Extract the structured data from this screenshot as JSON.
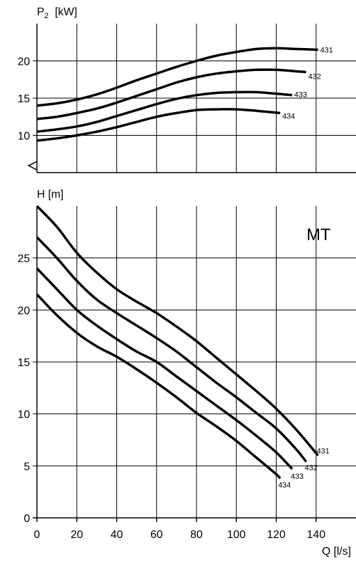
{
  "chart_data": [
    {
      "type": "line",
      "ylabel_main": "P",
      "ylabel_sub": "2",
      "ylabel_unit": "[kW]",
      "xlim": [
        0,
        160
      ],
      "ylim": [
        5,
        25
      ],
      "yticks": [
        10,
        15,
        20
      ],
      "grid": true,
      "series": [
        {
          "name": "431",
          "x": [
            0,
            10,
            20,
            30,
            40,
            50,
            60,
            70,
            80,
            90,
            100,
            110,
            120,
            130,
            141
          ],
          "y": [
            14.0,
            14.3,
            14.8,
            15.5,
            16.4,
            17.4,
            18.3,
            19.2,
            20.0,
            20.7,
            21.2,
            21.6,
            21.7,
            21.6,
            21.5
          ]
        },
        {
          "name": "432",
          "x": [
            0,
            10,
            20,
            30,
            40,
            50,
            60,
            70,
            80,
            90,
            100,
            110,
            120,
            130,
            135
          ],
          "y": [
            12.2,
            12.5,
            13.0,
            13.6,
            14.4,
            15.3,
            16.2,
            17.1,
            17.8,
            18.3,
            18.6,
            18.8,
            18.8,
            18.6,
            18.5
          ]
        },
        {
          "name": "433",
          "x": [
            0,
            10,
            20,
            30,
            40,
            50,
            60,
            70,
            80,
            90,
            100,
            110,
            120,
            128
          ],
          "y": [
            10.5,
            10.8,
            11.2,
            11.8,
            12.6,
            13.4,
            14.2,
            14.9,
            15.4,
            15.7,
            15.8,
            15.8,
            15.6,
            15.4
          ]
        },
        {
          "name": "434",
          "x": [
            0,
            10,
            20,
            30,
            40,
            50,
            60,
            70,
            80,
            90,
            100,
            110,
            122
          ],
          "y": [
            9.3,
            9.6,
            10.0,
            10.5,
            11.1,
            11.8,
            12.5,
            13.0,
            13.4,
            13.5,
            13.5,
            13.3,
            13.0
          ]
        }
      ]
    },
    {
      "type": "line",
      "ylabel": "H [m]",
      "xlabel": "Q [l/s]",
      "annotation": "MT",
      "xlim": [
        0,
        160
      ],
      "ylim": [
        0,
        30
      ],
      "xticks": [
        0,
        20,
        40,
        60,
        80,
        100,
        120,
        140
      ],
      "yticks": [
        0,
        5,
        10,
        15,
        20,
        25
      ],
      "grid": true,
      "series": [
        {
          "name": "431",
          "x": [
            0,
            10,
            20,
            30,
            40,
            50,
            60,
            70,
            80,
            90,
            100,
            110,
            120,
            130,
            141
          ],
          "y": [
            30.0,
            28.0,
            25.5,
            23.6,
            22.0,
            20.8,
            19.7,
            18.4,
            17.0,
            15.4,
            13.8,
            12.2,
            10.5,
            8.5,
            6.0
          ]
        },
        {
          "name": "432",
          "x": [
            0,
            10,
            20,
            30,
            40,
            50,
            60,
            70,
            80,
            90,
            100,
            110,
            120,
            130,
            135
          ],
          "y": [
            27.0,
            25.0,
            22.8,
            21.0,
            19.7,
            18.5,
            17.3,
            16.0,
            14.5,
            13.0,
            11.6,
            10.1,
            8.6,
            6.6,
            5.4
          ]
        },
        {
          "name": "433",
          "x": [
            0,
            10,
            20,
            30,
            40,
            50,
            60,
            70,
            80,
            90,
            100,
            110,
            120,
            128
          ],
          "y": [
            24.0,
            22.0,
            20.0,
            18.5,
            17.2,
            16.0,
            15.0,
            13.6,
            12.2,
            10.8,
            9.4,
            7.9,
            6.3,
            4.7
          ]
        },
        {
          "name": "434",
          "x": [
            0,
            10,
            20,
            30,
            40,
            50,
            60,
            70,
            80,
            90,
            100,
            110,
            120,
            122
          ],
          "y": [
            21.5,
            19.5,
            17.8,
            16.5,
            15.5,
            14.3,
            13.0,
            11.6,
            10.1,
            8.8,
            7.4,
            5.8,
            4.2,
            3.8
          ]
        }
      ]
    }
  ]
}
